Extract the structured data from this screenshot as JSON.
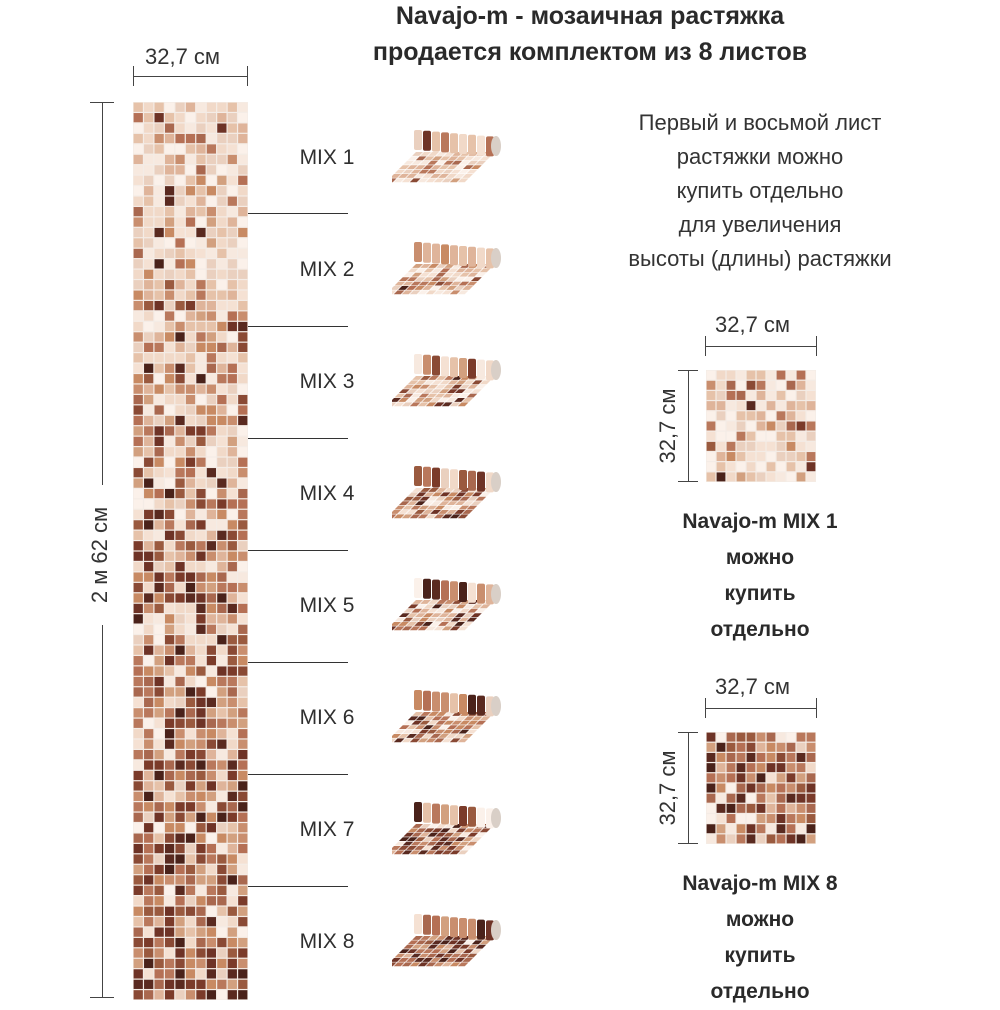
{
  "title": {
    "line1": "Navajo-m - мозаичная растяжка",
    "line2": "продается комплектом из 8 листов"
  },
  "strip": {
    "width_label": "32,7 см",
    "height_label": "2 м 62 см"
  },
  "sheets": [
    {
      "label": "MIX 1"
    },
    {
      "label": "MIX 2"
    },
    {
      "label": "MIX 3"
    },
    {
      "label": "MIX 4"
    },
    {
      "label": "MIX 5"
    },
    {
      "label": "MIX 6"
    },
    {
      "label": "MIX 7"
    },
    {
      "label": "MIX 8"
    }
  ],
  "info": {
    "lines": [
      "Первый и восьмой лист",
      "растяжки можно",
      "купить отдельно",
      "для увеличения",
      "высоты (длины) растяжки"
    ]
  },
  "sample1": {
    "width_label": "32,7 см",
    "height_label": "32,7 см",
    "caption": [
      "Navajo-m MIX 1",
      "можно",
      "купить",
      "отдельно"
    ]
  },
  "sample8": {
    "width_label": "32,7 см",
    "height_label": "32,7 см",
    "caption": [
      "Navajo-m MIX 8",
      "можно",
      "купить",
      "отдельно"
    ]
  },
  "palette": {
    "light": [
      "#f7e9df",
      "#f1d9c8",
      "#ead0bf",
      "#e6c2a9",
      "#f5e1d3",
      "#dfb49a",
      "#fbf1ea"
    ],
    "mid": [
      "#c98e6e",
      "#b9785c",
      "#d2a07f",
      "#a9684f",
      "#c88a63",
      "#b57055"
    ],
    "dark": [
      "#8a4a35",
      "#6e3326",
      "#7b3b2a",
      "#5a2a20",
      "#9a5a3f",
      "#4a221a"
    ]
  }
}
